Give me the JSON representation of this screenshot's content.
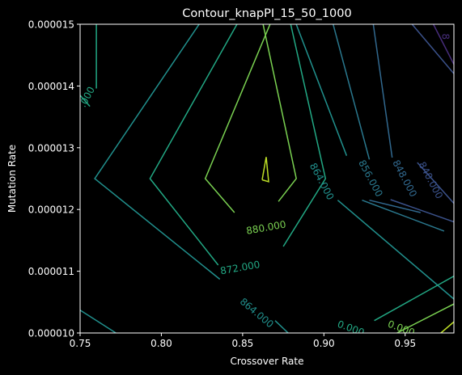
{
  "chart_data": {
    "type": "contour",
    "title": "Contour_knapPI_15_50_1000",
    "xlabel": "Crossover Rate",
    "ylabel": "Mutation Rate",
    "xlim": [
      0.75,
      0.98
    ],
    "ylim": [
      1e-05,
      1.5e-05
    ],
    "x_ticks": [
      {
        "value": 0.75,
        "label": "0.75"
      },
      {
        "value": 0.8,
        "label": "0.80"
      },
      {
        "value": 0.85,
        "label": "0.85"
      },
      {
        "value": 0.9,
        "label": "0.90"
      },
      {
        "value": 0.95,
        "label": "0.95"
      }
    ],
    "y_ticks": [
      {
        "value": 1e-05,
        "label": "0.000010"
      },
      {
        "value": 1.1e-05,
        "label": "0.000011"
      },
      {
        "value": 1.2e-05,
        "label": "0.000012"
      },
      {
        "value": 1.3e-05,
        "label": "0.000013"
      },
      {
        "value": 1.4e-05,
        "label": "0.000014"
      },
      {
        "value": 1.5e-05,
        "label": "0.000015"
      }
    ],
    "grid": false,
    "colormap": "viridis",
    "background": "#000000",
    "levels": [
      {
        "level": 832,
        "color": "#472d7b",
        "lines": [
          [
            [
              0.966,
              1.507e-05
            ],
            [
              0.98,
              1.435e-05
            ]
          ]
        ],
        "labels": [
          {
            "text": "8",
            "x": 0.9745,
            "y": 1.48e-05,
            "angle": 90
          }
        ]
      },
      {
        "level": 840,
        "color": "#3b528b",
        "lines": [
          [
            [
              0.952,
              1.507e-05
            ],
            [
              0.98,
              1.42e-05
            ]
          ],
          [
            [
              0.9575,
              1.276e-05
            ],
            [
              0.98,
              1.21e-05
            ]
          ],
          [
            [
              0.941,
              1.216e-05
            ],
            [
              0.98,
              1.18e-05
            ]
          ]
        ],
        "labels": [
          {
            "text": "840.000",
            "x": 0.9655,
            "y": 1.247e-05,
            "angle": 62
          }
        ]
      },
      {
        "level": 848,
        "color": "#31688e",
        "lines": [
          [
            [
              0.93,
              1.507e-05
            ],
            [
              0.942,
              1.284e-05
            ]
          ],
          [
            [
              0.9595,
              1.195e-05
            ],
            [
              0.928,
              1.215e-05
            ]
          ]
        ],
        "labels": [
          {
            "text": "848.000",
            "x": 0.9495,
            "y": 1.25e-05,
            "angle": 62
          }
        ]
      },
      {
        "level": 856,
        "color": "#2a788e",
        "lines": [
          [
            [
              0.905,
              1.507e-05
            ],
            [
              0.928,
              1.281e-05
            ]
          ],
          [
            [
              0.9235,
              1.215e-05
            ],
            [
              0.974,
              1.165e-05
            ]
          ]
        ],
        "labels": [
          {
            "text": "856.000",
            "x": 0.9285,
            "y": 1.25e-05,
            "angle": 62
          }
        ]
      },
      {
        "level": 864,
        "color": "#21908d",
        "lines": [
          [
            [
              0.882,
              1.507e-05
            ],
            [
              0.914,
              1.287e-05
            ]
          ],
          [
            [
              0.9085,
              1.215e-05
            ],
            [
              0.98,
              1.055e-05
            ]
          ],
          [
            [
              0.825,
              1.507e-05
            ],
            [
              0.759,
              1.25e-05
            ],
            [
              0.836,
              1.087e-05
            ]
          ],
          [
            [
              0.75,
              1.037e-05
            ],
            [
              0.772,
              1e-05
            ]
          ],
          [
            [
              0.87,
              1.02e-05
            ],
            [
              0.878,
              1e-05
            ]
          ]
        ],
        "labels": [
          {
            "text": "864.000",
            "x": 0.8985,
            "y": 1.245e-05,
            "angle": 62
          },
          {
            "text": "864.000",
            "x": 0.8585,
            "y": 1.032e-05,
            "angle": 40
          }
        ]
      },
      {
        "level": 872,
        "color": "#22a884",
        "lines": [
          [
            [
              0.848,
              1.507e-05
            ],
            [
              0.793,
              1.25e-05
            ],
            [
              0.835,
              1.11e-05
            ]
          ],
          [
            [
              0.875,
              1.14e-05
            ],
            [
              0.901,
              1.25e-05
            ],
            [
              0.879,
              1.507e-05
            ]
          ],
          [
            [
              0.931,
              1.02e-05
            ],
            [
              0.98,
              1.092e-05
            ]
          ],
          [
            [
              0.76,
              1.507e-05
            ],
            [
              0.76,
              1.396e-05
            ]
          ],
          [
            [
              0.75,
              1.385e-05
            ],
            [
              0.756,
              1.367e-05
            ]
          ]
        ],
        "labels": [
          {
            "text": "872.000",
            "x": 0.8485,
            "y": 1.105e-05,
            "angle": -10
          },
          {
            "text": ".000",
            "x": 0.7545,
            "y": 1.382e-05,
            "angle": -62
          },
          {
            "text": "0.000",
            "x": 0.9165,
            "y": 1.007e-05,
            "angle": 20
          }
        ]
      },
      {
        "level": 880,
        "color": "#7ad151",
        "lines": [
          [
            [
              0.868,
              1.507e-05
            ],
            [
              0.827,
              1.25e-05
            ],
            [
              0.845,
              1.195e-05
            ]
          ],
          [
            [
              0.872,
              1.213e-05
            ],
            [
              0.883,
              1.25e-05
            ],
            [
              0.862,
              1.507e-05
            ]
          ],
          [
            [
              0.945,
              1e-05
            ],
            [
              0.98,
              1.047e-05
            ]
          ]
        ],
        "labels": [
          {
            "text": "880.000",
            "x": 0.8645,
            "y": 1.17e-05,
            "angle": -10
          },
          {
            "text": "0.000",
            "x": 0.9475,
            "y": 1.007e-05,
            "angle": 20
          }
        ]
      },
      {
        "level": 888,
        "color": "#bddf26",
        "lines": [
          [
            [
              0.862,
              1.248e-05
            ],
            [
              0.8645,
              1.285e-05
            ],
            [
              0.866,
              1.245e-05
            ],
            [
              0.862,
              1.248e-05
            ]
          ],
          [
            [
              0.972,
              1e-05
            ],
            [
              0.98,
              1.018e-05
            ]
          ]
        ],
        "labels": []
      }
    ]
  }
}
